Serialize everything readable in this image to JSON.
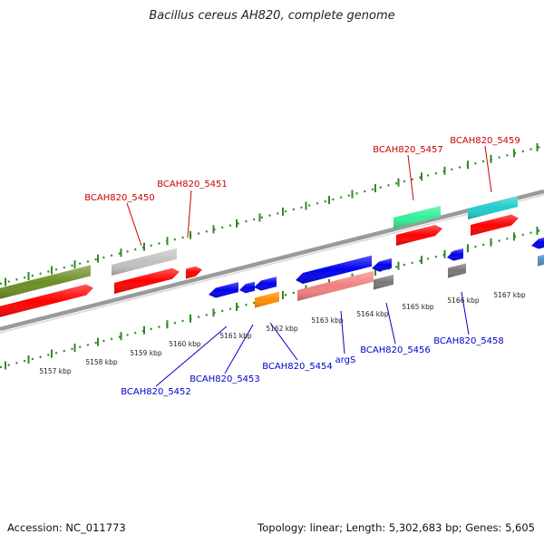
{
  "title": "Bacillus cereus AH820, complete genome",
  "footer": {
    "accession": "Accession: NC_011773",
    "stats": "Topology: linear; Length: 5,302,683 bp; Genes: 5,605"
  },
  "colors": {
    "track_line": "#8c8c8c",
    "tick_green": "#2e8b22",
    "forward_label": "#cc0000",
    "reverse_label": "#0000cc"
  },
  "scale_labels": [
    "5157 kbp",
    "5158 kbp",
    "5159 kbp",
    "5160 kbp",
    "5161 kbp",
    "5162 kbp",
    "5163 kbp",
    "5164 kbp",
    "5165 kbp",
    "5166 kbp",
    "5167 kbp"
  ],
  "forward_genes": [
    {
      "label": "",
      "color": "#6b8e23"
    },
    {
      "label": "",
      "color": "#ff0000"
    },
    {
      "label": "BCAH820_5450",
      "color": "#c0c0c0"
    },
    {
      "label": "",
      "color": "#ff0000"
    },
    {
      "label": "BCAH820_5451",
      "color": "#ff0000"
    },
    {
      "label": "BCAH820_5457",
      "color": "#33ee99"
    },
    {
      "label": "",
      "color": "#ff0000"
    },
    {
      "label": "BCAH820_5459",
      "color": "#22cccc"
    },
    {
      "label": "",
      "color": "#ff0000"
    }
  ],
  "reverse_genes": [
    {
      "label": "BCAH820_5452",
      "color": "#0000ee"
    },
    {
      "label": "BCAH820_5453",
      "color": "#0000ee"
    },
    {
      "label": "",
      "color": "#0000ee"
    },
    {
      "label": "BCAH820_5454",
      "color": "#ff8c00"
    },
    {
      "label": "argS",
      "color": "#0000ee"
    },
    {
      "label": "",
      "color": "#f08080"
    },
    {
      "label": "BCAH820_5456",
      "color": "#0000ee"
    },
    {
      "label": "",
      "color": "#777777"
    },
    {
      "label": "BCAH820_5458",
      "color": "#0000ee"
    },
    {
      "label": "",
      "color": "#777777"
    },
    {
      "label": "",
      "color": "#0000ee"
    },
    {
      "label": "",
      "color": "#4a90c8"
    }
  ]
}
